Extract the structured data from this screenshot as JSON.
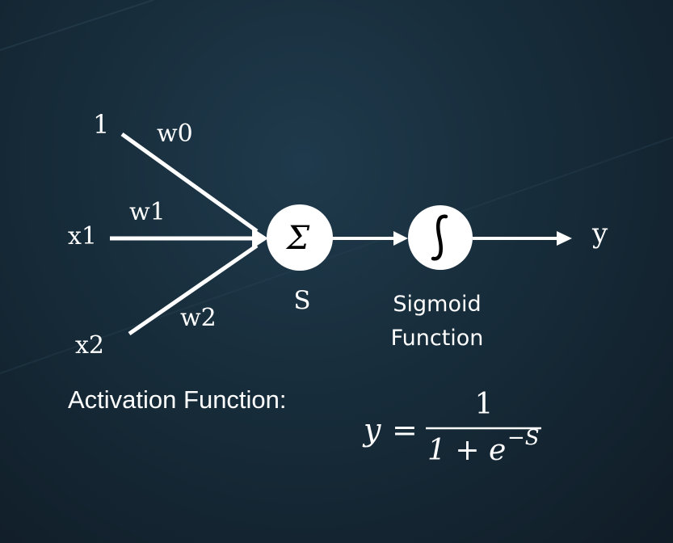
{
  "inputs": [
    {
      "label": "1",
      "weight": "w0"
    },
    {
      "label": "x1",
      "weight": "w1"
    },
    {
      "label": "x2",
      "weight": "w2"
    }
  ],
  "summation_node": {
    "symbol": "Σ",
    "label": "S"
  },
  "sigmoid_node": {
    "symbol": "ʃ",
    "label_line1": "Sigmoid",
    "label_line2": "Function"
  },
  "output": {
    "label": "y"
  },
  "activation": {
    "label": "Activation Function:",
    "lhs": "y",
    "equals": "=",
    "numerator": "1",
    "denominator_base": "1 + e",
    "denominator_exponent": "−S"
  },
  "colors": {
    "background": "#172c3a",
    "lines": "#ffffff",
    "node_fill": "#ffffff",
    "node_symbol": "#000000",
    "text": "#ffffff"
  }
}
